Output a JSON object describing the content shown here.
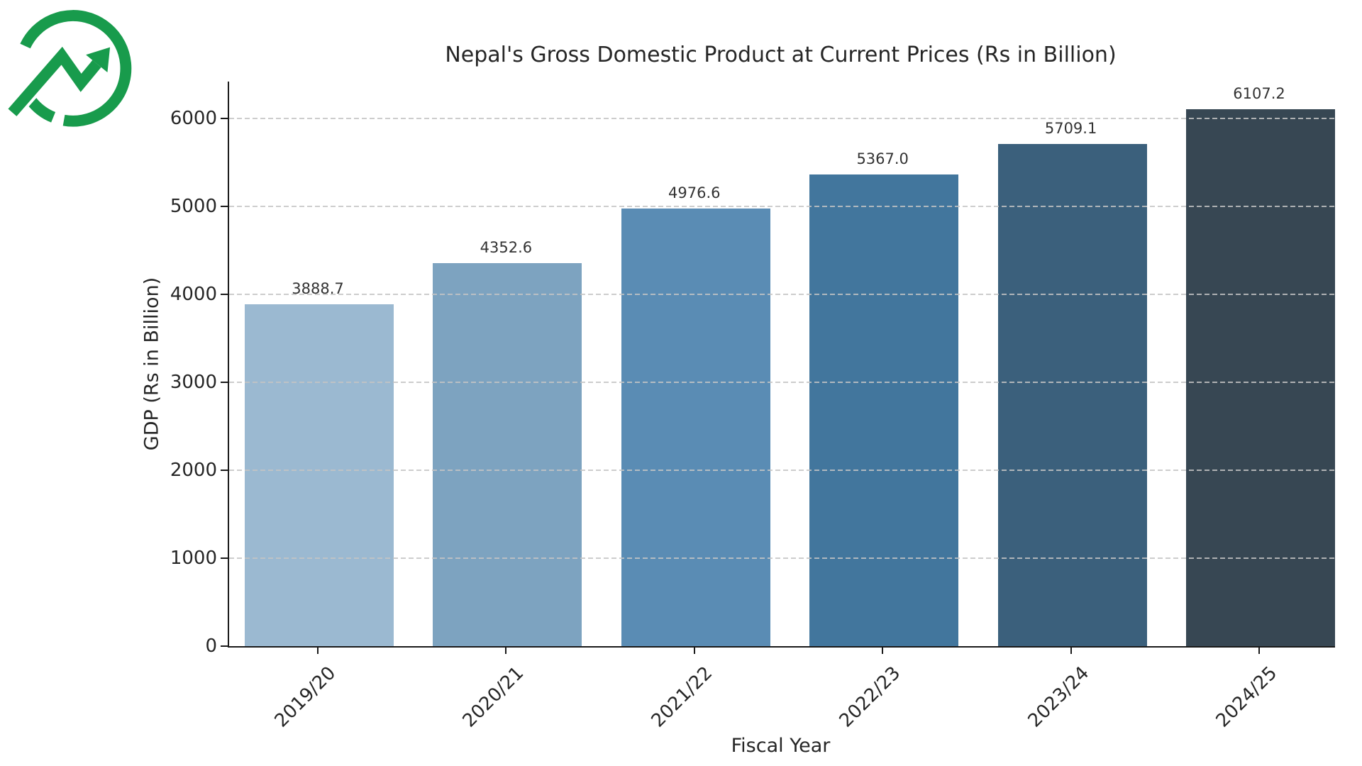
{
  "logo": {
    "name": "growth-trend-logo",
    "color": "#189b4c"
  },
  "chart_data": {
    "type": "bar",
    "title": "Nepal's Gross Domestic Product at Current Prices (Rs in Billion)",
    "xlabel": "Fiscal Year",
    "ylabel": "GDP (Rs in Billion)",
    "categories": [
      "2019/20",
      "2020/21",
      "2021/22",
      "2022/23",
      "2023/24",
      "2024/25"
    ],
    "values": [
      3888.7,
      4352.6,
      4976.6,
      5367.0,
      5709.1,
      6107.2
    ],
    "value_labels": [
      "3888.7",
      "4352.6",
      "4976.6",
      "5367.0",
      "5709.1",
      "6107.2"
    ],
    "bar_colors": [
      "#9bb9d1",
      "#7da3c0",
      "#5a8cb4",
      "#42769d",
      "#3b607c",
      "#374753"
    ],
    "yticks": [
      0,
      1000,
      2000,
      3000,
      4000,
      5000,
      6000
    ],
    "ytick_labels": [
      "0",
      "1000",
      "2000",
      "3000",
      "4000",
      "5000",
      "6000"
    ],
    "ylim": [
      0,
      6420
    ],
    "grid": "horizontal-dashed",
    "grid_over_bars": true,
    "legend": "none",
    "x_label_rotation_deg": 45
  }
}
